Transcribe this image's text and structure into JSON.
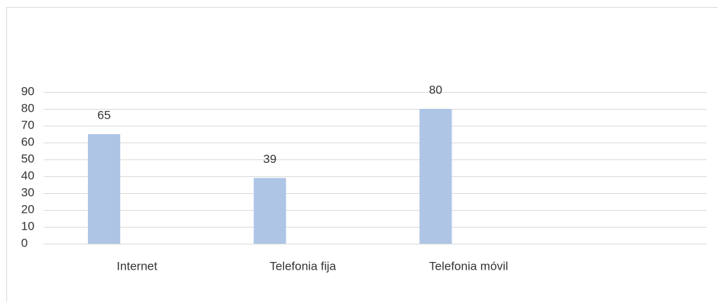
{
  "chart_data": {
    "type": "bar",
    "categories": [
      "Internet",
      "Telefonia fija",
      "Telefonia móvil",
      null
    ],
    "values": [
      65,
      39,
      80,
      null
    ],
    "color": "#aec5e6",
    "ylim": [
      0,
      90
    ],
    "yticks": [
      0,
      10,
      20,
      30,
      40,
      50,
      60,
      70,
      80,
      90
    ],
    "grid": true
  }
}
